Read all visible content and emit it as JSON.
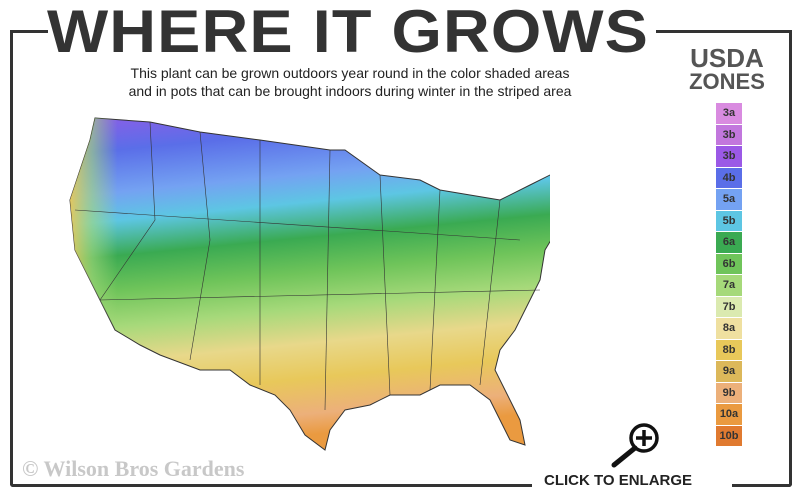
{
  "header": {
    "title": "WHERE IT GROWS",
    "subtitle_line1": "This plant can be grown outdoors year round in the color shaded areas",
    "subtitle_line2": "and in pots that can be brought indoors during winter in the striped area"
  },
  "legend": {
    "title_line1": "USDA",
    "title_line2": "ZONES",
    "zones": [
      {
        "label": "3a",
        "color": "#d98be0"
      },
      {
        "label": "3b",
        "color": "#c277dd"
      },
      {
        "label": "3b",
        "color": "#9b59e6"
      },
      {
        "label": "4b",
        "color": "#5a6ee8"
      },
      {
        "label": "5a",
        "color": "#74a2f2"
      },
      {
        "label": "5b",
        "color": "#5dc6e3"
      },
      {
        "label": "6a",
        "color": "#3aaa52"
      },
      {
        "label": "6b",
        "color": "#6fc45a"
      },
      {
        "label": "7a",
        "color": "#a6d97a"
      },
      {
        "label": "7b",
        "color": "#dbeab0"
      },
      {
        "label": "8a",
        "color": "#efe0a0"
      },
      {
        "label": "8b",
        "color": "#e8c85a"
      },
      {
        "label": "9a",
        "color": "#dcb85a"
      },
      {
        "label": "9b",
        "color": "#ecb07a"
      },
      {
        "label": "10a",
        "color": "#ea9a40"
      },
      {
        "label": "10b",
        "color": "#e07a30"
      }
    ]
  },
  "footer": {
    "copyright": "© Wilson Bros Gardens",
    "enlarge_label": "CLICK TO ENLARGE",
    "enlarge_icon": "zoom-in-magnifier-icon"
  }
}
